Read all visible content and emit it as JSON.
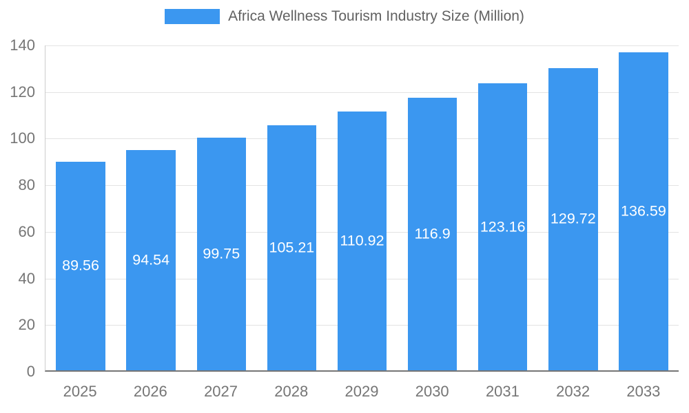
{
  "chart_data": {
    "type": "bar",
    "title": "Africa Wellness Tourism Industry Size (Million)",
    "categories": [
      "2025",
      "2026",
      "2027",
      "2028",
      "2029",
      "2030",
      "2031",
      "2032",
      "2033"
    ],
    "values": [
      89.56,
      94.54,
      99.75,
      105.21,
      110.92,
      116.9,
      123.16,
      129.72,
      136.59
    ],
    "labels": [
      "89.56",
      "94.54",
      "99.75",
      "105.21",
      "110.92",
      "116.9",
      "123.16",
      "129.72",
      "136.59"
    ],
    "xlabel": "",
    "ylabel": "",
    "ylim": [
      0,
      140
    ],
    "yticks": [
      0,
      20,
      40,
      60,
      80,
      100,
      120,
      140
    ],
    "grid": true,
    "legend_position": "top",
    "colors": {
      "bar": "#3B97F0",
      "bar_label": "#ffffff",
      "axis_text": "#757575",
      "gridline": "#e3e3e3",
      "baseline": "#757575",
      "legend_text": "#616161"
    }
  }
}
